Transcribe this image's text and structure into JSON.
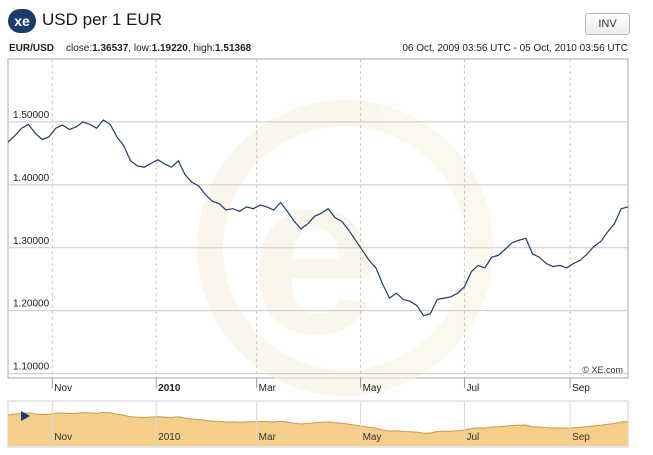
{
  "header": {
    "logo_text": "xe",
    "title": "USD per 1 EUR",
    "invert_label": "INV"
  },
  "info": {
    "pair": "EUR/USD",
    "close_label": "close:",
    "close_value": "1.36537",
    "low_label": "low:",
    "low_value": "1.19220",
    "high_label": "high:",
    "high_value": "1.51368",
    "date_range": "06 Oct, 2009 03:56 UTC - 05 Oct, 2010 03:56 UTC"
  },
  "watermark": "© XE.com",
  "colors": {
    "line": "#1f3b6b",
    "grid": "#cccccc",
    "nav_fill": "#f5cf8a",
    "nav_line": "#c99a4a"
  },
  "chart_data": {
    "type": "line",
    "x_tick_labels": [
      "Nov",
      "2010",
      "Mar",
      "May",
      "Jul",
      "Sep"
    ],
    "y_tick_labels": [
      "1.50000",
      "1.40000",
      "1.30000",
      "1.20000",
      "1.10000"
    ],
    "y_ticks": [
      1.5,
      1.4,
      1.3,
      1.2,
      1.1
    ],
    "ylim": [
      1.093,
      1.6
    ],
    "xlim": [
      "2009-10-06",
      "2010-10-05"
    ],
    "grid": true,
    "series": [
      {
        "x": [
          "2009-10-06",
          "2009-10-10",
          "2009-10-14",
          "2009-10-18",
          "2009-10-22",
          "2009-10-26",
          "2009-10-30",
          "2009-11-03",
          "2009-11-07",
          "2009-11-11",
          "2009-11-15",
          "2009-11-19",
          "2009-11-23",
          "2009-11-27",
          "2009-12-01",
          "2009-12-05",
          "2009-12-09",
          "2009-12-13",
          "2009-12-17",
          "2009-12-21",
          "2009-12-25",
          "2009-12-29",
          "2010-01-02",
          "2010-01-06",
          "2010-01-10",
          "2010-01-14",
          "2010-01-18",
          "2010-01-22",
          "2010-01-26",
          "2010-01-30",
          "2010-02-03",
          "2010-02-07",
          "2010-02-11",
          "2010-02-15",
          "2010-02-19",
          "2010-02-23",
          "2010-02-27",
          "2010-03-03",
          "2010-03-07",
          "2010-03-11",
          "2010-03-15",
          "2010-03-19",
          "2010-03-23",
          "2010-03-27",
          "2010-03-31",
          "2010-04-04",
          "2010-04-08",
          "2010-04-12",
          "2010-04-16",
          "2010-04-20",
          "2010-04-24",
          "2010-04-28",
          "2010-05-02",
          "2010-05-06",
          "2010-05-10",
          "2010-05-14",
          "2010-05-18",
          "2010-05-22",
          "2010-05-26",
          "2010-05-30",
          "2010-06-03",
          "2010-06-07",
          "2010-06-11",
          "2010-06-15",
          "2010-06-19",
          "2010-06-23",
          "2010-06-27",
          "2010-07-01",
          "2010-07-05",
          "2010-07-09",
          "2010-07-13",
          "2010-07-17",
          "2010-07-21",
          "2010-07-25",
          "2010-07-29",
          "2010-08-02",
          "2010-08-06",
          "2010-08-10",
          "2010-08-14",
          "2010-08-18",
          "2010-08-22",
          "2010-08-26",
          "2010-08-30",
          "2010-09-03",
          "2010-09-07",
          "2010-09-11",
          "2010-09-15",
          "2010-09-19",
          "2010-09-23",
          "2010-09-27",
          "2010-10-01",
          "2010-10-05"
        ],
        "y": [
          1.468,
          1.478,
          1.49,
          1.496,
          1.482,
          1.472,
          1.476,
          1.49,
          1.495,
          1.488,
          1.492,
          1.5,
          1.496,
          1.49,
          1.503,
          1.496,
          1.476,
          1.462,
          1.438,
          1.43,
          1.428,
          1.434,
          1.44,
          1.433,
          1.428,
          1.438,
          1.416,
          1.404,
          1.398,
          1.384,
          1.374,
          1.37,
          1.36,
          1.362,
          1.358,
          1.365,
          1.362,
          1.368,
          1.365,
          1.36,
          1.372,
          1.358,
          1.342,
          1.33,
          1.338,
          1.35,
          1.355,
          1.362,
          1.348,
          1.342,
          1.328,
          1.312,
          1.296,
          1.28,
          1.268,
          1.242,
          1.22,
          1.228,
          1.218,
          1.215,
          1.208,
          1.192,
          1.195,
          1.218,
          1.22,
          1.222,
          1.228,
          1.238,
          1.262,
          1.272,
          1.268,
          1.285,
          1.288,
          1.298,
          1.308,
          1.312,
          1.315,
          1.29,
          1.285,
          1.275,
          1.27,
          1.272,
          1.268,
          1.275,
          1.28,
          1.29,
          1.302,
          1.31,
          1.325,
          1.338,
          1.362,
          1.365
        ]
      }
    ]
  },
  "navigator": {
    "x_tick_labels": [
      "Nov",
      "2010",
      "Mar",
      "May",
      "Jul",
      "Sep"
    ]
  }
}
